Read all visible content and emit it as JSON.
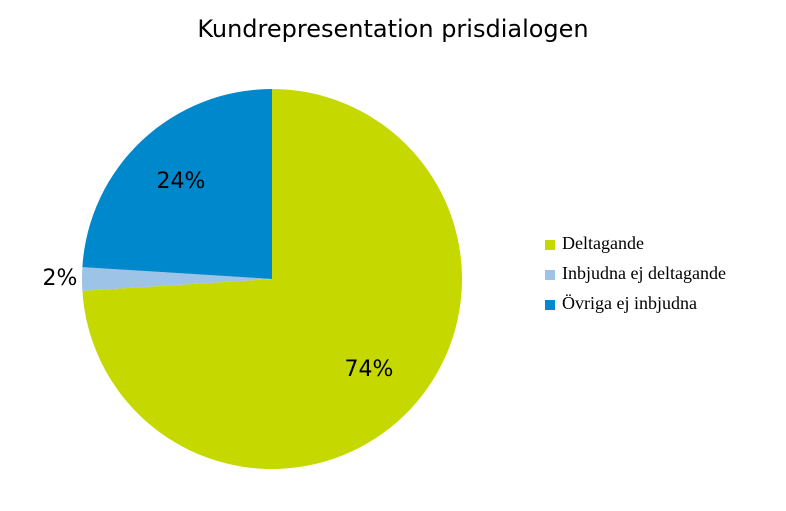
{
  "chart_data": {
    "type": "pie",
    "title": "Kundrepresentation prisdialogen",
    "categories": [
      "Deltagande",
      "Inbjudna ej deltagande",
      "Övriga ej inbjudna"
    ],
    "values": [
      74,
      2,
      24
    ],
    "value_labels": [
      "74%",
      "2%",
      "24%"
    ],
    "colors": [
      "#c5d800",
      "#9dc3e6",
      "#0088cc"
    ],
    "legend": "right"
  }
}
